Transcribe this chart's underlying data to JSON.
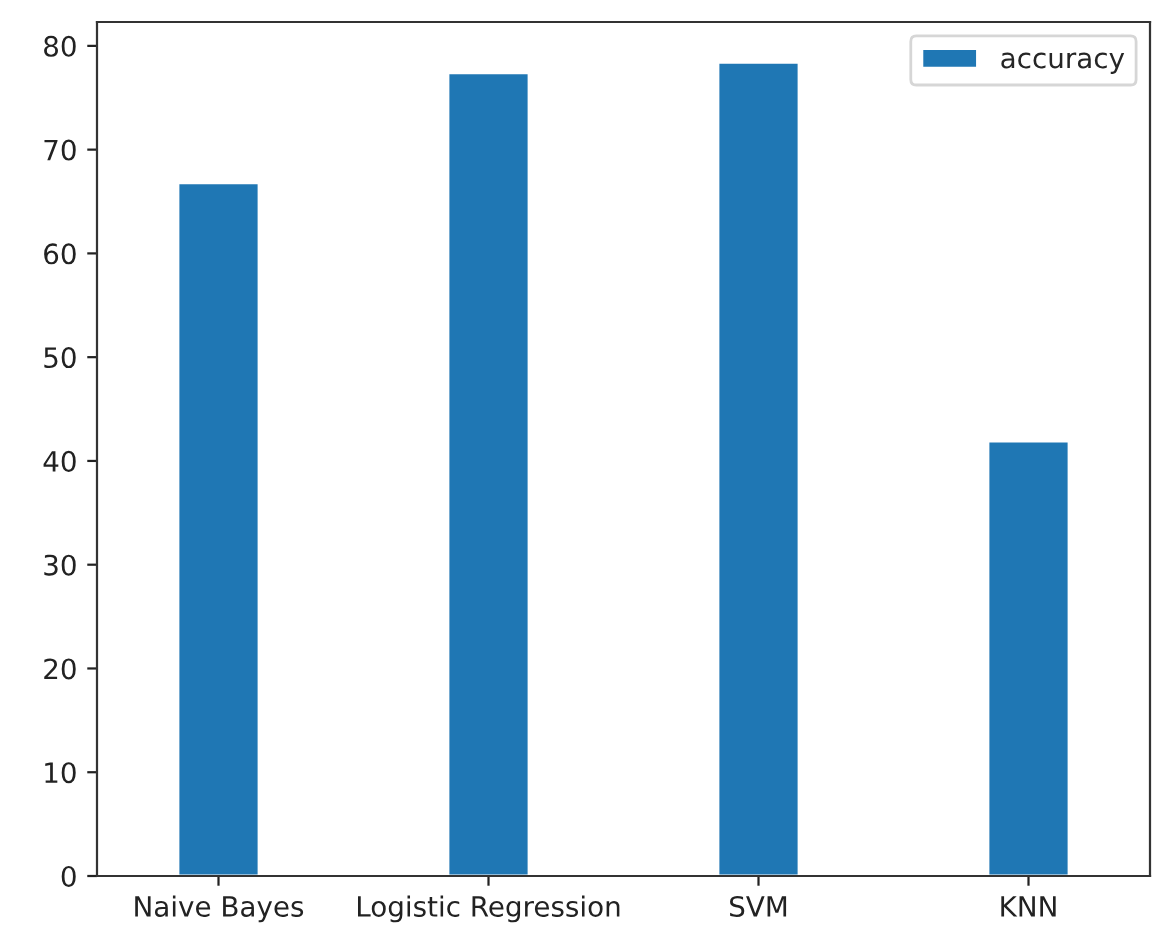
{
  "chart_data": {
    "type": "bar",
    "categories": [
      "Naive Bayes",
      "Logistic Regression",
      "SVM",
      "KNN"
    ],
    "series": [
      {
        "name": "accuracy",
        "color": "#1f77b4",
        "values": [
          66.8,
          77.4,
          78.4,
          41.9
        ]
      }
    ],
    "ylim": [
      0,
      82.3
    ],
    "yticks": [
      0,
      10,
      20,
      30,
      40,
      50,
      60,
      70,
      80
    ],
    "grid": false,
    "legend": "top right"
  }
}
